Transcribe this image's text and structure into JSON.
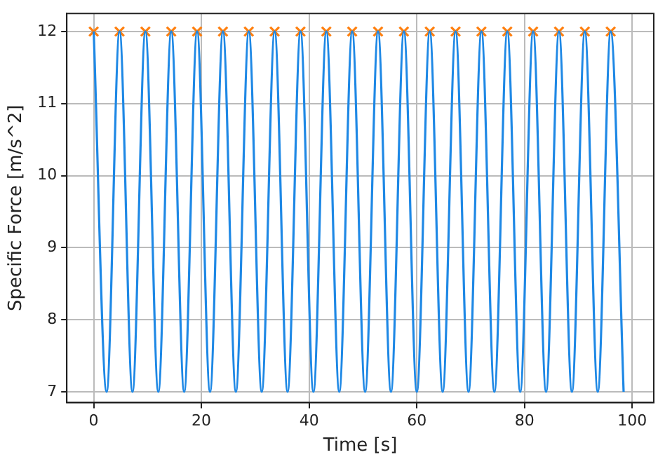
{
  "chart_data": {
    "type": "line",
    "xlabel": "Time [s]",
    "ylabel": "Specific Force [m/s^2]",
    "xlim": [
      -5,
      104
    ],
    "ylim": [
      6.85,
      12.25
    ],
    "xticks": [
      0,
      20,
      40,
      60,
      80,
      100
    ],
    "yticks": [
      7,
      8,
      9,
      10,
      11,
      12
    ],
    "grid": true,
    "legend": false,
    "series": [
      {
        "type": "line",
        "color": "#1e88e5",
        "marker": "none",
        "x": [
          0,
          2.4,
          4.8,
          7.2,
          9.6,
          12,
          14.4,
          16.8,
          19.2,
          21.6,
          24,
          26.4,
          28.8,
          31.2,
          33.6,
          36,
          38.4,
          40.8,
          43.2,
          45.6,
          48,
          50.4,
          52.8,
          55.2,
          57.6,
          60,
          62.4,
          64.8,
          67.2,
          69.6,
          72,
          74.4,
          76.8,
          79.2,
          81.6,
          84,
          86.4,
          88.8,
          91.2,
          93.6,
          96,
          98.4
        ],
        "values": [
          12,
          7,
          12,
          7,
          12,
          7,
          12,
          7,
          12,
          7,
          12,
          7,
          12,
          7,
          12,
          7,
          12,
          7,
          12,
          7,
          12,
          7,
          12,
          7,
          12,
          7,
          12,
          7,
          12,
          7,
          12,
          7,
          12,
          7,
          12,
          7,
          12,
          7,
          12,
          7,
          12,
          7
        ]
      },
      {
        "type": "scatter",
        "color": "#ff7f0e",
        "marker": "cross",
        "x": [
          0,
          4.8,
          9.6,
          14.4,
          19.2,
          24,
          28.8,
          33.6,
          38.4,
          43.2,
          48,
          52.8,
          57.6,
          62.4,
          67.2,
          72,
          76.8,
          81.6,
          86.4,
          91.2,
          96
        ],
        "values": [
          12,
          12,
          12,
          12,
          12,
          12,
          12,
          12,
          12,
          12,
          12,
          12,
          12,
          12,
          12,
          12,
          12,
          12,
          12,
          12,
          12
        ]
      }
    ]
  }
}
